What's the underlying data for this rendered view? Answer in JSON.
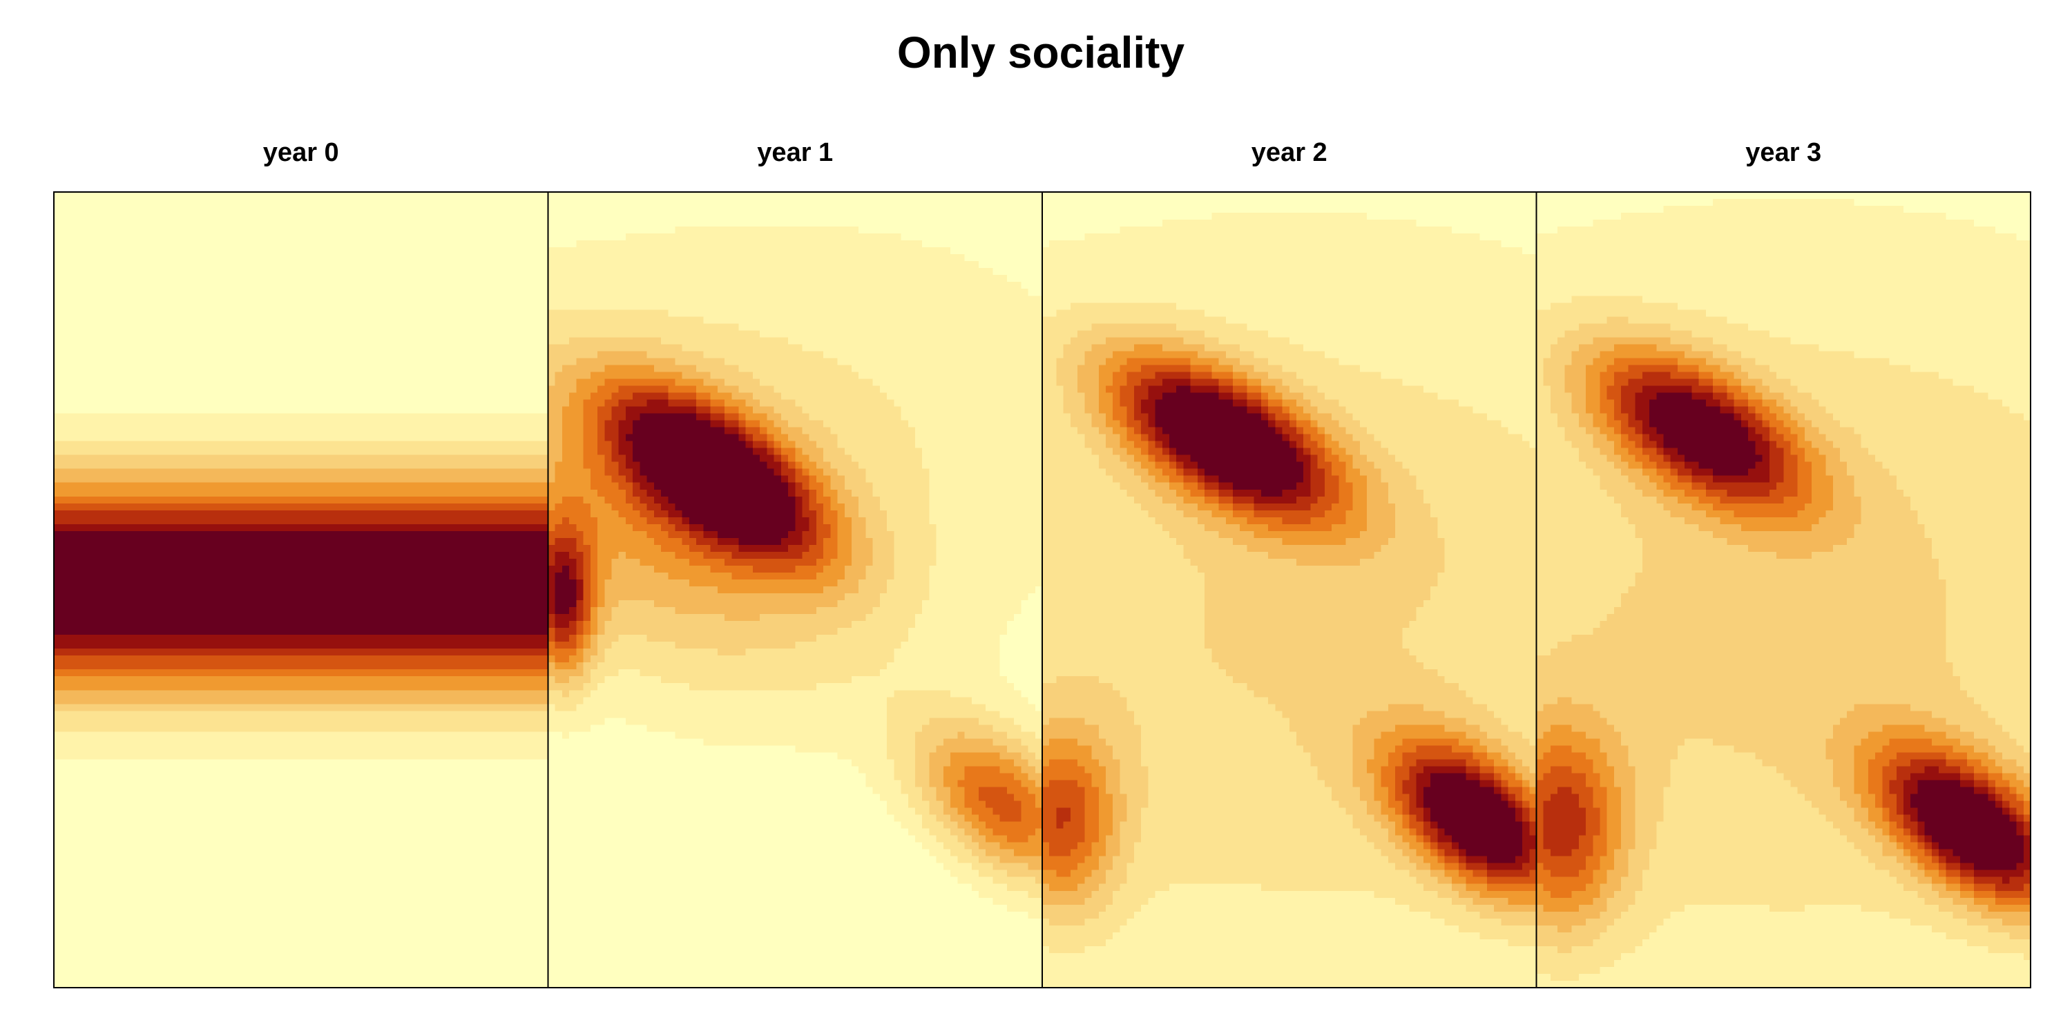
{
  "chart_data": {
    "type": "heatmap",
    "title": "Only sociality",
    "xlabel": "",
    "ylabel": "",
    "legend": "none",
    "grid": false,
    "color_scale": [
      "#FFFFBF",
      "#FFF3AA",
      "#FCE391",
      "#F8D07A",
      "#F4B85A",
      "#F09A30",
      "#E8781A",
      "#D55511",
      "#B82F0D",
      "#96100E",
      "#67001F"
    ],
    "panels": [
      {
        "title": "year 0",
        "blobs": [
          {
            "type": "band",
            "cy": 0.495,
            "sy": 0.095,
            "amp": 1.15
          }
        ]
      },
      {
        "title": "year 1",
        "blobs": [
          {
            "cx": 0.34,
            "cy": 0.355,
            "sx": 0.16,
            "sy": 0.055,
            "rot": 0.35,
            "amp": 1.0
          },
          {
            "cx": 0.22,
            "cy": 0.42,
            "sx": 0.3,
            "sy": 0.13,
            "rot": 0.25,
            "amp": 0.35
          },
          {
            "cx": 0.03,
            "cy": 0.515,
            "sx": 0.045,
            "sy": 0.07,
            "rot": 0.0,
            "amp": 0.72
          },
          {
            "cx": 0.92,
            "cy": 0.77,
            "sx": 0.13,
            "sy": 0.06,
            "rot": 0.35,
            "amp": 0.65
          },
          {
            "cx": 0.5,
            "cy": 0.3,
            "sx": 0.55,
            "sy": 0.22,
            "rot": 0.0,
            "amp": 0.18
          }
        ]
      },
      {
        "title": "year 2",
        "blobs": [
          {
            "cx": 0.37,
            "cy": 0.31,
            "sx": 0.17,
            "sy": 0.055,
            "rot": 0.3,
            "amp": 1.05
          },
          {
            "cx": 0.88,
            "cy": 0.79,
            "sx": 0.13,
            "sy": 0.055,
            "rot": 0.35,
            "amp": 1.0
          },
          {
            "cx": 0.04,
            "cy": 0.79,
            "sx": 0.08,
            "sy": 0.08,
            "rot": 0.0,
            "amp": 0.55
          },
          {
            "cx": 0.5,
            "cy": 0.55,
            "sx": 0.75,
            "sy": 0.35,
            "rot": 0.0,
            "amp": 0.28
          }
        ]
      },
      {
        "title": "year 3",
        "blobs": [
          {
            "cx": 0.33,
            "cy": 0.3,
            "sx": 0.16,
            "sy": 0.055,
            "rot": 0.3,
            "amp": 0.9
          },
          {
            "cx": 0.88,
            "cy": 0.8,
            "sx": 0.14,
            "sy": 0.055,
            "rot": 0.35,
            "amp": 1.0
          },
          {
            "cx": 0.05,
            "cy": 0.8,
            "sx": 0.09,
            "sy": 0.09,
            "rot": 0.0,
            "amp": 0.6
          },
          {
            "cx": 0.5,
            "cy": 0.55,
            "sx": 0.75,
            "sy": 0.35,
            "rot": 0.0,
            "amp": 0.3
          }
        ]
      }
    ]
  }
}
